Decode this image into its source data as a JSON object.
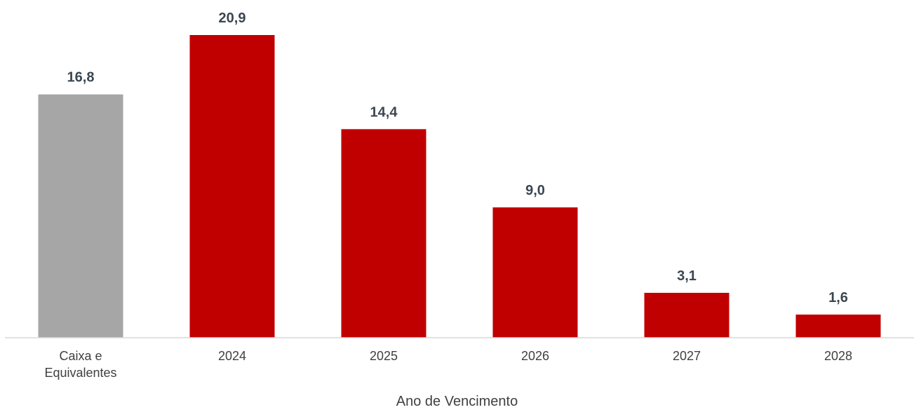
{
  "chart_data": {
    "type": "bar",
    "categories": [
      "Caixa e Equivalentes",
      "2024",
      "2025",
      "2026",
      "2027",
      "2028"
    ],
    "values": [
      16.8,
      20.9,
      14.4,
      9.0,
      3.1,
      1.6
    ],
    "value_labels": [
      "16,8",
      "20,9",
      "14,4",
      "9,0",
      "3,1",
      "1,6"
    ],
    "colors": [
      "#a6a6a6",
      "#c00000",
      "#c00000",
      "#c00000",
      "#c00000",
      "#c00000"
    ],
    "xlabel": "Ano de Vencimento"
  }
}
